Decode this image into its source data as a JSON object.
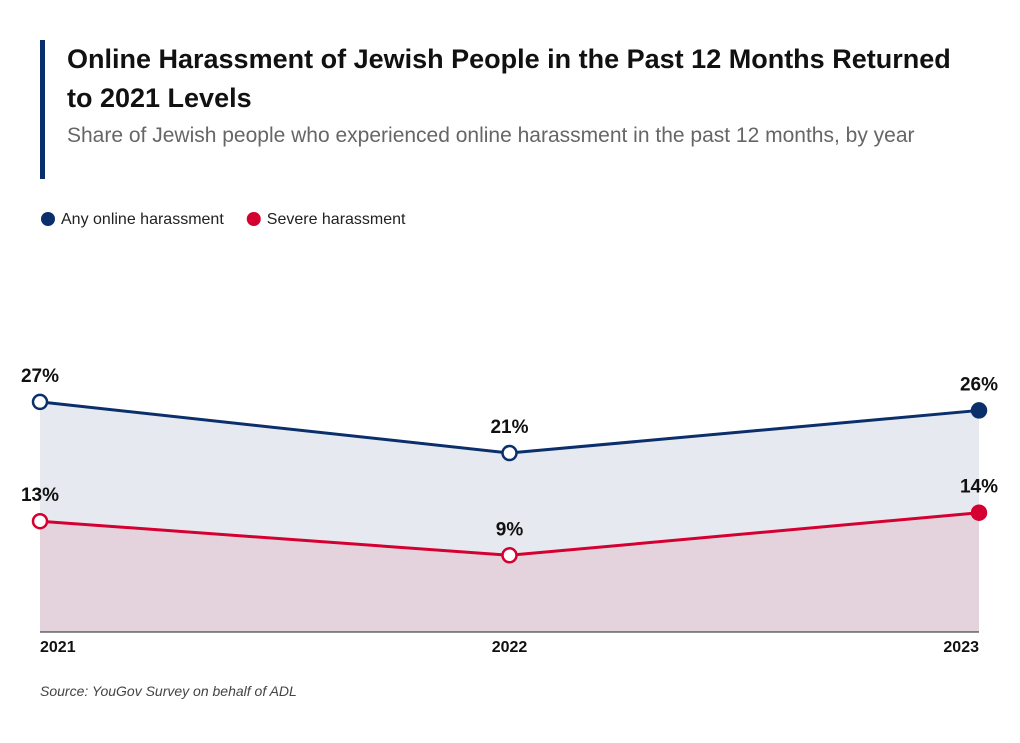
{
  "chart_data": {
    "type": "area",
    "title": "Online Harassment of Jewish People in the Past 12 Months Returned to 2021 Levels",
    "subtitle": "Share of Jewish people who experienced online harassment in the past 12 months, by year",
    "source": "Source: YouGov Survey on behalf of ADL",
    "categories": [
      "2021",
      "2022",
      "2023"
    ],
    "series": [
      {
        "name": "Any online harassment",
        "color": "#0b2f6b",
        "values": [
          27,
          21,
          26
        ],
        "value_labels": [
          "27%",
          "21%",
          "26%"
        ]
      },
      {
        "name": "Severe harassment",
        "color": "#d50032",
        "values": [
          13,
          9,
          14
        ],
        "value_labels": [
          "13%",
          "9%",
          "14%"
        ]
      }
    ],
    "ylim": [
      0,
      46
    ]
  }
}
